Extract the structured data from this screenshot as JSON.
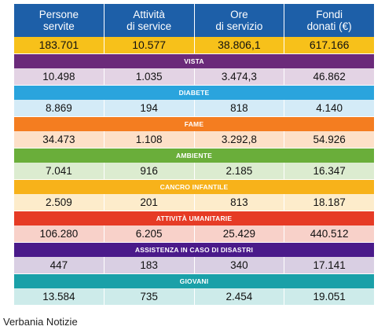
{
  "headers": [
    {
      "line1": "Persone",
      "line2": "servite"
    },
    {
      "line1": "Attività",
      "line2": "di service"
    },
    {
      "line1": "Ore",
      "line2": "di servizio"
    },
    {
      "line1": "Fondi",
      "line2": "donati (€)"
    }
  ],
  "total": [
    "183.701",
    "10.577",
    "38.806,1",
    "617.166"
  ],
  "categories": [
    {
      "label": "VISTA",
      "values": [
        "10.498",
        "1.035",
        "3.474,3",
        "46.862"
      ],
      "color": "#6b2a7a",
      "light": "#e3d3e4"
    },
    {
      "label": "DIABETE",
      "values": [
        "8.869",
        "194",
        "818",
        "4.140"
      ],
      "color": "#2aa4dd",
      "light": "#d4ebf7"
    },
    {
      "label": "FAME",
      "values": [
        "34.473",
        "1.108",
        "3.292,8",
        "54.926"
      ],
      "color": "#f47d20",
      "light": "#fde0c8"
    },
    {
      "label": "AMBIENTE",
      "values": [
        "7.041",
        "916",
        "2.185",
        "16.347"
      ],
      "color": "#6aae3a",
      "light": "#dcecd0"
    },
    {
      "label": "CANCRO INFANTILE",
      "values": [
        "2.509",
        "201",
        "813",
        "18.187"
      ],
      "color": "#f7b21a",
      "light": "#fdeccb"
    },
    {
      "label": "ATTIVITÀ UMANITARIE",
      "values": [
        "106.280",
        "6.205",
        "25.429",
        "440.512"
      ],
      "color": "#e63b25",
      "light": "#f8d1c9"
    },
    {
      "label": "ASSISTENZA IN CASO DI DISASTRI",
      "values": [
        "447",
        "183",
        "340",
        "17.141"
      ],
      "color": "#4a1a8a",
      "light": "#d9cfe3"
    },
    {
      "label": "GIOVANI",
      "values": [
        "13.584",
        "735",
        "2.454",
        "19.051"
      ],
      "color": "#1aa0a8",
      "light": "#cdebea"
    }
  ],
  "colors": {
    "header": "#1d5fa8",
    "total": "#f7c11a"
  },
  "source": "Verbania Notizie"
}
